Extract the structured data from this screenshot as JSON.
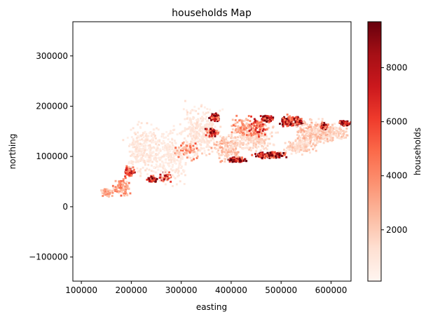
{
  "chart_data": {
    "type": "heatmap",
    "title": "households Map",
    "xlabel": "easting",
    "ylabel": "northing",
    "xlim": [
      83000,
      640000
    ],
    "ylim": [
      -148000,
      368000
    ],
    "xticks": [
      100000,
      200000,
      300000,
      400000,
      500000,
      600000
    ],
    "yticks": [
      -100000,
      0,
      100000,
      200000,
      300000
    ],
    "xtick_labels": [
      "100000",
      "200000",
      "300000",
      "400000",
      "500000",
      "600000"
    ],
    "ytick_labels": [
      "−100000",
      "0",
      "100000",
      "200000",
      "300000"
    ],
    "grid": false,
    "colormap": "Reds",
    "colorbar": {
      "label": "households",
      "range": [
        100,
        9700
      ],
      "ticks": [
        2000,
        4000,
        6000,
        8000
      ],
      "tick_labels": [
        "2000",
        "4000",
        "6000",
        "8000"
      ]
    },
    "colors": {
      "low": "#fff5f0",
      "high": "#67000d"
    },
    "clusters": [
      {
        "x": 150000,
        "y": 30000,
        "sx": 9000,
        "sy": 6000,
        "v": 3500,
        "n": 60
      },
      {
        "x": 180000,
        "y": 40000,
        "sx": 12000,
        "sy": 12000,
        "v": 4200,
        "n": 90
      },
      {
        "x": 195000,
        "y": 72000,
        "sx": 9000,
        "sy": 9000,
        "v": 6800,
        "n": 60
      },
      {
        "x": 240000,
        "y": 57000,
        "sx": 7000,
        "sy": 4500,
        "v": 9500,
        "n": 70
      },
      {
        "x": 265000,
        "y": 63000,
        "sx": 10000,
        "sy": 8000,
        "v": 7500,
        "n": 50
      },
      {
        "x": 220000,
        "y": 115000,
        "sx": 26000,
        "sy": 38000,
        "v": 1200,
        "n": 260
      },
      {
        "x": 275000,
        "y": 105000,
        "sx": 28000,
        "sy": 40000,
        "v": 1000,
        "n": 260
      },
      {
        "x": 335000,
        "y": 150000,
        "sx": 32000,
        "sy": 40000,
        "v": 1200,
        "n": 320
      },
      {
        "x": 365000,
        "y": 180000,
        "sx": 7000,
        "sy": 6000,
        "v": 9500,
        "n": 90
      },
      {
        "x": 360000,
        "y": 150000,
        "sx": 9000,
        "sy": 7000,
        "v": 8500,
        "n": 60
      },
      {
        "x": 390000,
        "y": 120000,
        "sx": 22000,
        "sy": 22000,
        "v": 2800,
        "n": 150
      },
      {
        "x": 410000,
        "y": 95000,
        "sx": 14000,
        "sy": 3500,
        "v": 9700,
        "n": 110
      },
      {
        "x": 440000,
        "y": 140000,
        "sx": 35000,
        "sy": 22000,
        "v": 1800,
        "n": 280
      },
      {
        "x": 475000,
        "y": 105000,
        "sx": 22000,
        "sy": 4500,
        "v": 9600,
        "n": 140
      },
      {
        "x": 470000,
        "y": 178000,
        "sx": 9000,
        "sy": 6000,
        "v": 8800,
        "n": 70
      },
      {
        "x": 520000,
        "y": 172000,
        "sx": 18000,
        "sy": 8000,
        "v": 9400,
        "n": 220
      },
      {
        "x": 560000,
        "y": 150000,
        "sx": 28000,
        "sy": 20000,
        "v": 2600,
        "n": 230
      },
      {
        "x": 535000,
        "y": 120000,
        "sx": 25000,
        "sy": 10000,
        "v": 2000,
        "n": 150
      },
      {
        "x": 600000,
        "y": 150000,
        "sx": 24000,
        "sy": 12000,
        "v": 2400,
        "n": 160
      },
      {
        "x": 625000,
        "y": 168000,
        "sx": 9000,
        "sy": 4000,
        "v": 9500,
        "n": 70
      },
      {
        "x": 585000,
        "y": 162000,
        "sx": 6000,
        "sy": 6000,
        "v": 9000,
        "n": 50
      },
      {
        "x": 450000,
        "y": 160000,
        "sx": 15000,
        "sy": 15000,
        "v": 6500,
        "n": 80
      },
      {
        "x": 420000,
        "y": 160000,
        "sx": 20000,
        "sy": 15000,
        "v": 4000,
        "n": 80
      },
      {
        "x": 310000,
        "y": 115000,
        "sx": 20000,
        "sy": 15000,
        "v": 4500,
        "n": 60
      }
    ]
  }
}
